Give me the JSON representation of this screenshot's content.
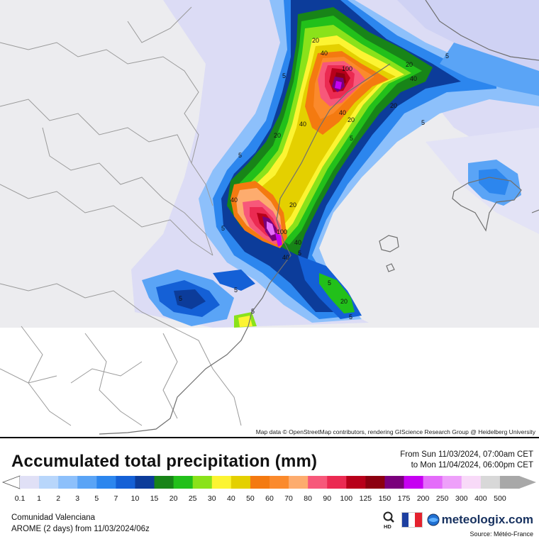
{
  "map": {
    "attribution": "Map data © OpenStreetMap contributors, rendering GIScience Research Group @ Heidelberg University",
    "contour_labels": [
      "5",
      "20",
      "40",
      "100",
      "20",
      "40",
      "5",
      "20",
      "40",
      "5",
      "20",
      "40",
      "5",
      "5",
      "20",
      "40",
      "20",
      "5",
      "40",
      "100",
      "40",
      "5",
      "5",
      "20",
      "5",
      "5",
      "5",
      "5"
    ]
  },
  "header": {
    "title": "Accumulated total precipitation (mm)",
    "period_from": "From Sun 11/03/2024, 07:00am CET",
    "period_to": "to Mon 11/04/2024, 06:00pm CET"
  },
  "legend": {
    "labels": [
      "0.1",
      "1",
      "2",
      "3",
      "5",
      "7",
      "10",
      "15",
      "20",
      "25",
      "30",
      "40",
      "50",
      "60",
      "70",
      "80",
      "90",
      "100",
      "125",
      "150",
      "175",
      "200",
      "250",
      "300",
      "400",
      "500"
    ],
    "colors": [
      "#e0e0f6",
      "#b8d6fb",
      "#8dc0fb",
      "#5aa4f6",
      "#2c86ee",
      "#1460d6",
      "#0c3c9a",
      "#188418",
      "#22c01a",
      "#8ae21a",
      "#fcf432",
      "#e4d000",
      "#f47a10",
      "#fb8a2c",
      "#fdac6e",
      "#f7587a",
      "#eb2a52",
      "#b8001a",
      "#8c0010",
      "#7a007c",
      "#c600f2",
      "#e46cfa",
      "#eea0fa",
      "#f8daf8",
      "#d8d8d8",
      "#a8a8a8"
    ]
  },
  "footer": {
    "region": "Comunidad Valenciana",
    "model": "AROME (2 days)  from  11/03/2024/06z",
    "brand": "meteologix.com",
    "hd_label": "HD",
    "source": "Source: Météo-France"
  }
}
